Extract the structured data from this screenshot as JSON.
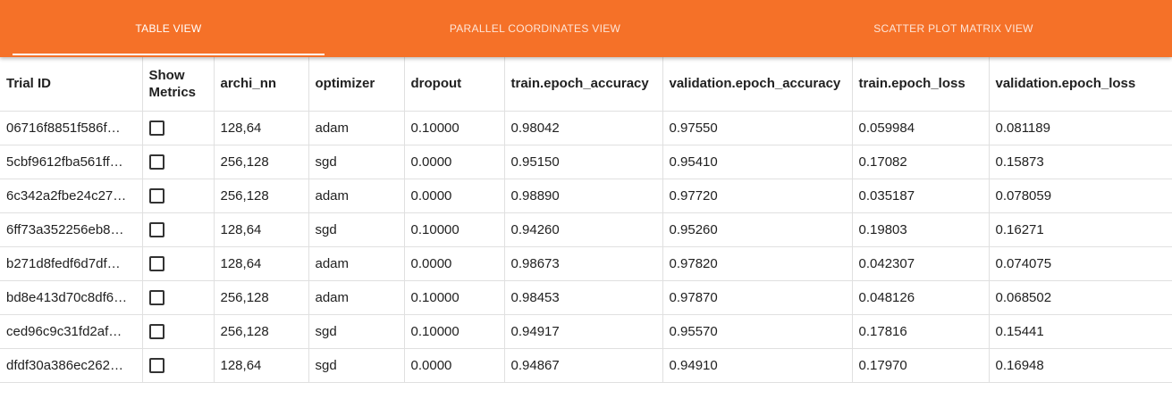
{
  "tabs": [
    {
      "label": "TABLE VIEW",
      "active": true
    },
    {
      "label": "PARALLEL COORDINATES VIEW",
      "active": false
    },
    {
      "label": "SCATTER PLOT MATRIX VIEW",
      "active": false
    }
  ],
  "colors": {
    "accent": "#f57128",
    "text": "#212121",
    "divider": "#e0e0e0"
  },
  "table": {
    "headers": {
      "trial_id": "Trial ID",
      "show_metrics_1": "Show",
      "show_metrics_2": "Metrics",
      "archi_nn": "archi_nn",
      "optimizer": "optimizer",
      "dropout": "dropout",
      "train_acc": "train.epoch_accuracy",
      "val_acc": "validation.epoch_accuracy",
      "train_loss": "train.epoch_loss",
      "val_loss": "validation.epoch_loss"
    },
    "rows": [
      {
        "trial_id": "06716f8851f586f…",
        "archi_nn": "128,64",
        "optimizer": "adam",
        "dropout": "0.10000",
        "train_acc": "0.98042",
        "val_acc": "0.97550",
        "train_loss": "0.059984",
        "val_loss": "0.081189",
        "checked": false
      },
      {
        "trial_id": "5cbf9612fba561ff…",
        "archi_nn": "256,128",
        "optimizer": "sgd",
        "dropout": "0.0000",
        "train_acc": "0.95150",
        "val_acc": "0.95410",
        "train_loss": "0.17082",
        "val_loss": "0.15873",
        "checked": false
      },
      {
        "trial_id": "6c342a2fbe24c27…",
        "archi_nn": "256,128",
        "optimizer": "adam",
        "dropout": "0.0000",
        "train_acc": "0.98890",
        "val_acc": "0.97720",
        "train_loss": "0.035187",
        "val_loss": "0.078059",
        "checked": false
      },
      {
        "trial_id": "6ff73a352256eb8…",
        "archi_nn": "128,64",
        "optimizer": "sgd",
        "dropout": "0.10000",
        "train_acc": "0.94260",
        "val_acc": "0.95260",
        "train_loss": "0.19803",
        "val_loss": "0.16271",
        "checked": false
      },
      {
        "trial_id": "b271d8fedf6d7df…",
        "archi_nn": "128,64",
        "optimizer": "adam",
        "dropout": "0.0000",
        "train_acc": "0.98673",
        "val_acc": "0.97820",
        "train_loss": "0.042307",
        "val_loss": "0.074075",
        "checked": false
      },
      {
        "trial_id": "bd8e413d70c8df6…",
        "archi_nn": "256,128",
        "optimizer": "adam",
        "dropout": "0.10000",
        "train_acc": "0.98453",
        "val_acc": "0.97870",
        "train_loss": "0.048126",
        "val_loss": "0.068502",
        "checked": false
      },
      {
        "trial_id": "ced96c9c31fd2af…",
        "archi_nn": "256,128",
        "optimizer": "sgd",
        "dropout": "0.10000",
        "train_acc": "0.94917",
        "val_acc": "0.95570",
        "train_loss": "0.17816",
        "val_loss": "0.15441",
        "checked": false
      },
      {
        "trial_id": "dfdf30a386ec262…",
        "archi_nn": "128,64",
        "optimizer": "sgd",
        "dropout": "0.0000",
        "train_acc": "0.94867",
        "val_acc": "0.94910",
        "train_loss": "0.17970",
        "val_loss": "0.16948",
        "checked": false
      }
    ]
  }
}
